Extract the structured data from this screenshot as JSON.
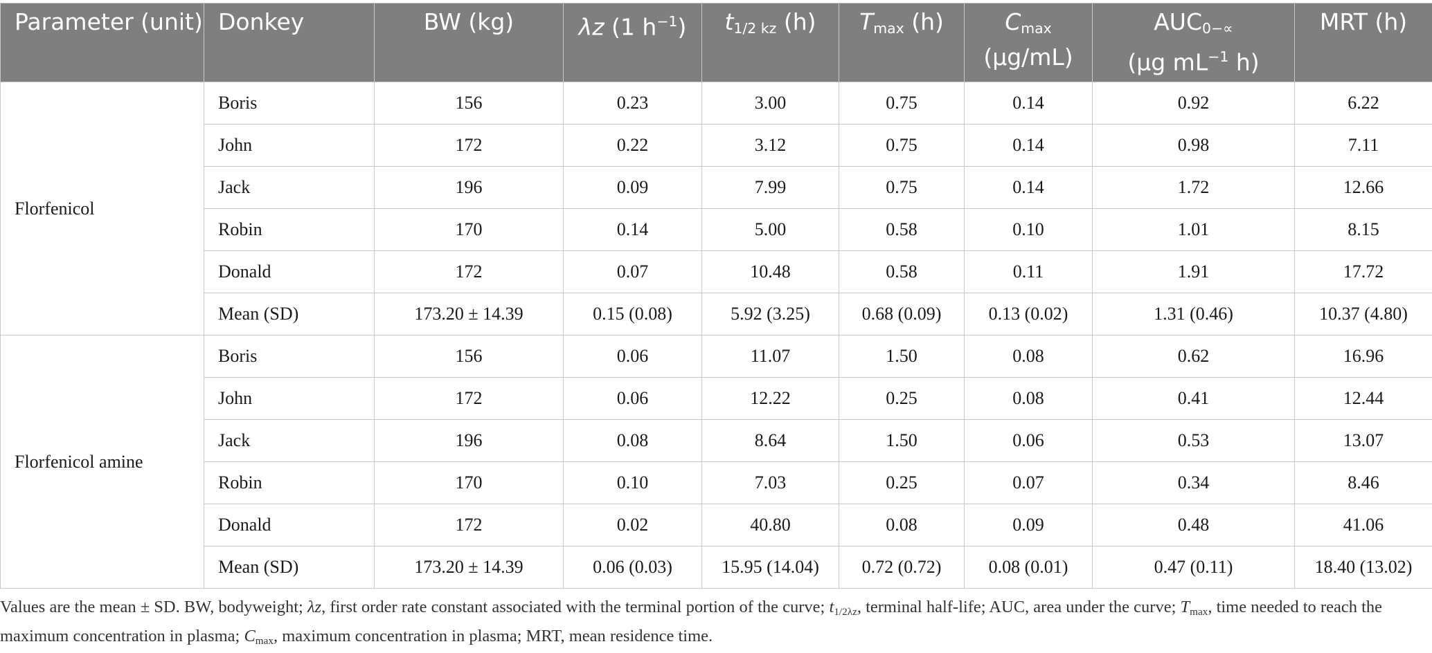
{
  "headers": {
    "parameter": "Parameter (unit)",
    "donkey": "Donkey",
    "bw": "BW (kg)",
    "lz_sym": "λz",
    "lz_unit": "(1 h",
    "lz_exp": "−1",
    "lz_close": ")",
    "t_sym": "t",
    "t_sub": "1/2 kz",
    "t_unit": "(h)",
    "tmax_sym": "T",
    "tmax_sub": "max",
    "tmax_unit": "(h)",
    "cmax_sym": "C",
    "cmax_sub": "max",
    "cmax_unit": "(μg/mL)",
    "auc_sym": "AUC",
    "auc_sub": "0−∝",
    "auc_unit_a": "(μg mL",
    "auc_exp": "−1",
    "auc_unit_b": "h)",
    "mrt": "MRT (h)"
  },
  "groups": [
    {
      "name": "Florfenicol",
      "rows": [
        {
          "donkey": "Boris",
          "bw": "156",
          "lz": "0.23",
          "thalf": "3.00",
          "tmax": "0.75",
          "cmax": "0.14",
          "auc": "0.92",
          "mrt": "6.22"
        },
        {
          "donkey": "John",
          "bw": "172",
          "lz": "0.22",
          "thalf": "3.12",
          "tmax": "0.75",
          "cmax": "0.14",
          "auc": "0.98",
          "mrt": "7.11"
        },
        {
          "donkey": "Jack",
          "bw": "196",
          "lz": "0.09",
          "thalf": "7.99",
          "tmax": "0.75",
          "cmax": "0.14",
          "auc": "1.72",
          "mrt": "12.66"
        },
        {
          "donkey": "Robin",
          "bw": "170",
          "lz": "0.14",
          "thalf": "5.00",
          "tmax": "0.58",
          "cmax": "0.10",
          "auc": "1.01",
          "mrt": "8.15"
        },
        {
          "donkey": "Donald",
          "bw": "172",
          "lz": "0.07",
          "thalf": "10.48",
          "tmax": "0.58",
          "cmax": "0.11",
          "auc": "1.91",
          "mrt": "17.72"
        },
        {
          "donkey": "Mean (SD)",
          "bw": "173.20 ± 14.39",
          "lz": "0.15 (0.08)",
          "thalf": "5.92 (3.25)",
          "tmax": "0.68 (0.09)",
          "cmax": "0.13 (0.02)",
          "auc": "1.31 (0.46)",
          "mrt": "10.37 (4.80)"
        }
      ]
    },
    {
      "name": "Florfenicol amine",
      "rows": [
        {
          "donkey": "Boris",
          "bw": "156",
          "lz": "0.06",
          "thalf": "11.07",
          "tmax": "1.50",
          "cmax": "0.08",
          "auc": "0.62",
          "mrt": "16.96"
        },
        {
          "donkey": "John",
          "bw": "172",
          "lz": "0.06",
          "thalf": "12.22",
          "tmax": "0.25",
          "cmax": "0.08",
          "auc": "0.41",
          "mrt": "12.44"
        },
        {
          "donkey": "Jack",
          "bw": "196",
          "lz": "0.08",
          "thalf": "8.64",
          "tmax": "1.50",
          "cmax": "0.06",
          "auc": "0.53",
          "mrt": "13.07"
        },
        {
          "donkey": "Robin",
          "bw": "170",
          "lz": "0.10",
          "thalf": "7.03",
          "tmax": "0.25",
          "cmax": "0.07",
          "auc": "0.34",
          "mrt": "8.46"
        },
        {
          "donkey": "Donald",
          "bw": "172",
          "lz": "0.02",
          "thalf": "40.80",
          "tmax": "0.08",
          "cmax": "0.09",
          "auc": "0.48",
          "mrt": "41.06"
        },
        {
          "donkey": "Mean (SD)",
          "bw": "173.20 ± 14.39",
          "lz": "0.06 (0.03)",
          "thalf": "15.95 (14.04)",
          "tmax": "0.72 (0.72)",
          "cmax": "0.08 (0.01)",
          "auc": "0.47 (0.11)",
          "mrt": "18.40 (13.02)"
        }
      ]
    }
  ],
  "footnote": {
    "p1": "Values are the mean ± SD. BW, bodyweight; ",
    "lz": "λz",
    "p2": ", first order rate constant associated with the terminal portion of the curve; ",
    "t": "t",
    "t_sub": "1/2λz",
    "p3": ", terminal half-life; AUC, area under the curve; ",
    "tmax": "T",
    "tmax_sub": "max",
    "p4": ", time needed to reach the maximum concentration in plasma; ",
    "cmax": "C",
    "cmax_sub": "max",
    "p5": ", maximum concentration in plasma; MRT, mean residence time."
  }
}
